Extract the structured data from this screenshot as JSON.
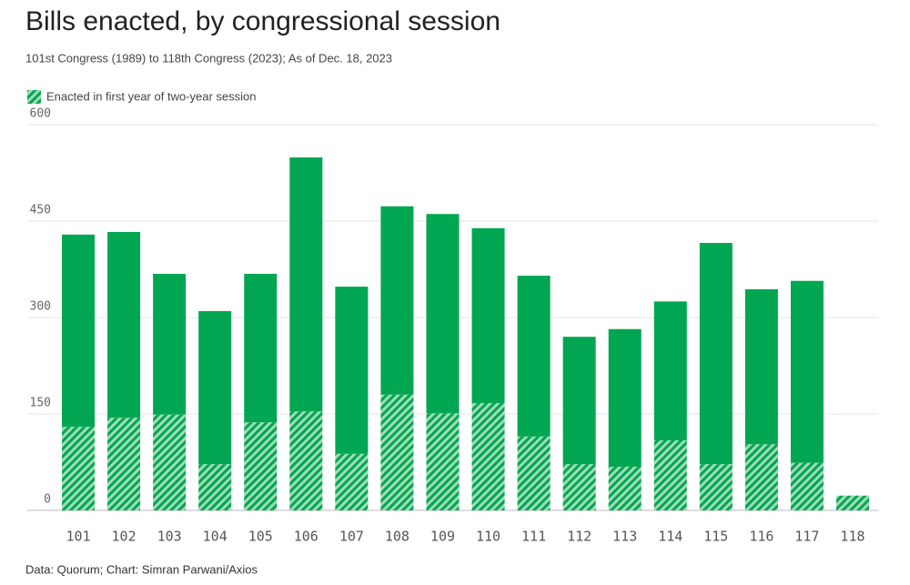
{
  "chart_data": {
    "type": "stacked_bar",
    "title": "Bills enacted, by congressional session",
    "subtitle": "101st Congress (1989) to 118th Congress (2023); As of Dec. 18, 2023",
    "source": "Data: Quorum; Chart: Simran Parwani/Axios",
    "categories": [
      "101",
      "102",
      "103",
      "104",
      "105",
      "106",
      "107",
      "108",
      "109",
      "110",
      "111",
      "112",
      "113",
      "114",
      "115",
      "116",
      "117",
      "118"
    ],
    "series": [
      {
        "name": "Enacted in first year of two-year session",
        "color": "#00a651",
        "pattern": "hatch",
        "values": [
          130,
          144,
          149,
          72,
          137,
          154,
          88,
          180,
          151,
          167,
          115,
          72,
          68,
          109,
          72,
          103,
          74,
          23
        ]
      },
      {
        "color": "#00a651",
        "values": [
          299,
          289,
          219,
          238,
          231,
          395,
          260,
          293,
          310,
          272,
          250,
          198,
          214,
          216,
          344,
          241,
          283,
          null
        ]
      }
    ],
    "ylim": [
      0,
      600
    ],
    "yticks": [
      0,
      150,
      300,
      450,
      600
    ],
    "grid": true
  }
}
